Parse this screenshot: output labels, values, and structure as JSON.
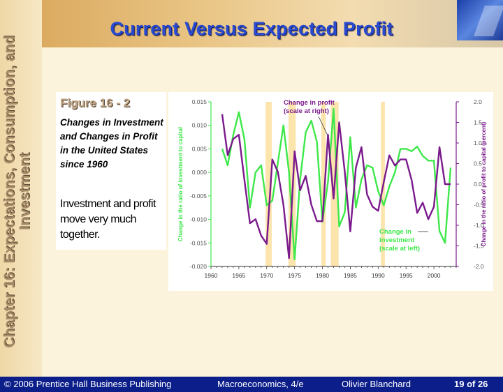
{
  "slide": {
    "title": "Current Versus Expected Profit",
    "side_title": "Chapter 16: Expectations, Consumption, and Investment"
  },
  "figure": {
    "label": "Figure 16 - 2",
    "description": "Changes in Investment and Changes in Profit in the United States since 1960",
    "note": "Investment and profit move very much together."
  },
  "footer": {
    "copyright": "© 2006 Prentice Hall Business Publishing",
    "book": "Macroeconomics, 4/e",
    "author": "Olivier Blanchard",
    "page": "19 of 26"
  },
  "colors": {
    "title": "#2a4bd0",
    "footer_bg": "#0b1e8a",
    "investment": "#3ee84a",
    "profit": "#7a1a8c",
    "recession_band": "#fce4ad"
  },
  "chart_data": {
    "type": "line",
    "xlabel": "",
    "ylabel_left": "Change in the ratio of investment to capital",
    "ylabel_right": "Change in the ratio of profit to capital (percent)",
    "xlim": [
      1960,
      2004
    ],
    "ylim_left": [
      -0.02,
      0.015
    ],
    "ylim_right": [
      -2.0,
      2.0
    ],
    "x_ticks": [
      "1960",
      "1965",
      "1970",
      "1975",
      "1980",
      "1985",
      "1990",
      "1995",
      "2000"
    ],
    "y_left_ticks": [
      "0.015",
      "0.010",
      "0.005",
      "0.000",
      "-0.005",
      "-0.010",
      "-0.015",
      "-0.020"
    ],
    "y_right_ticks": [
      "2.0",
      "1.5",
      "1.0",
      "0.5",
      "0.0",
      "-0.5",
      "-1.0",
      "-1.5",
      "-2.0"
    ],
    "recession_bands": [
      [
        1969.8,
        1970.9
      ],
      [
        1973.9,
        1975.2
      ],
      [
        1979.8,
        1980.6
      ],
      [
        1981.5,
        1982.9
      ],
      [
        1990.5,
        1991.2
      ]
    ],
    "annotations": {
      "profit": "Change in profit (scale at right)",
      "investment": "Change in investment (scale at left)"
    },
    "series": [
      {
        "name": "investment",
        "axis": "left",
        "x": [
          1962,
          1963,
          1964,
          1965,
          1966,
          1967,
          1968,
          1969,
          1970,
          1971,
          1972,
          1973,
          1974,
          1975,
          1976,
          1977,
          1978,
          1979,
          1980,
          1981,
          1982,
          1983,
          1984,
          1985,
          1986,
          1987,
          1988,
          1989,
          1990,
          1991,
          1992,
          1993,
          1994,
          1995,
          1996,
          1997,
          1998,
          1999,
          2000,
          2001,
          2002,
          2003
        ],
        "values": [
          0.005,
          0.0015,
          0.008,
          0.0128,
          0.007,
          -0.0075,
          0.0,
          0.0015,
          -0.007,
          -0.006,
          0.002,
          0.01,
          0.0,
          -0.0185,
          -0.0015,
          0.0085,
          0.011,
          0.0065,
          -0.0105,
          -0.002,
          0.0135,
          -0.0115,
          -0.0085,
          0.0075,
          -0.0075,
          -0.0015,
          0.0015,
          0.001,
          -0.004,
          -0.007,
          -0.003,
          0.0,
          0.005,
          0.005,
          0.0045,
          0.0055,
          0.0035,
          0.0025,
          0.0025,
          -0.0125,
          -0.015,
          0.001
        ]
      },
      {
        "name": "profit",
        "axis": "right",
        "x": [
          1962,
          1963,
          1964,
          1965,
          1966,
          1967,
          1968,
          1969,
          1970,
          1971,
          1972,
          1973,
          1974,
          1975,
          1976,
          1977,
          1978,
          1979,
          1980,
          1981,
          1982,
          1983,
          1984,
          1985,
          1986,
          1987,
          1988,
          1989,
          1990,
          1991,
          1992,
          1993,
          1994,
          1995,
          1996,
          1997,
          1998,
          1999,
          2000,
          2001,
          2002,
          2003
        ],
        "values": [
          1.7,
          0.7,
          1.1,
          1.2,
          0.1,
          -0.95,
          -0.85,
          -1.25,
          -1.45,
          0.6,
          0.3,
          -0.5,
          -1.8,
          0.8,
          -0.15,
          0.2,
          -0.5,
          -0.9,
          -0.9,
          1.2,
          -0.35,
          1.5,
          0.3,
          -1.15,
          0.4,
          0.9,
          -0.25,
          -0.55,
          -0.65,
          0.05,
          0.7,
          0.45,
          0.6,
          0.6,
          0.1,
          -0.7,
          -0.45,
          -0.85,
          -0.55,
          0.9,
          0.0,
          0.0
        ]
      }
    ]
  }
}
